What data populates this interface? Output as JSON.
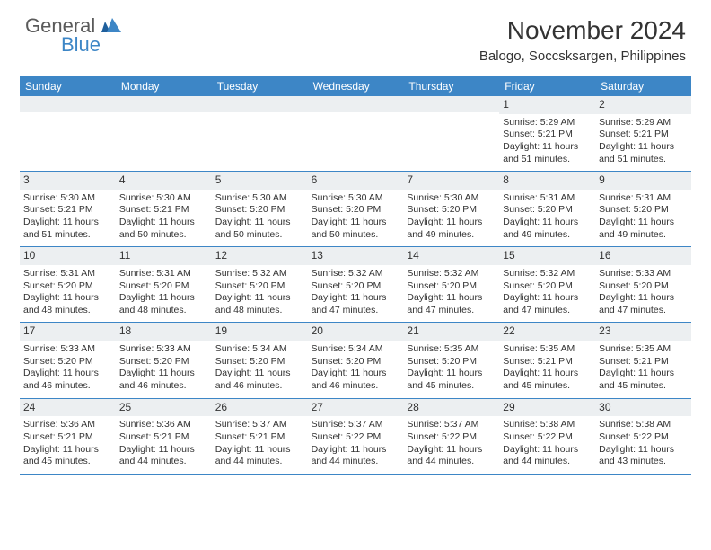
{
  "logo": {
    "general": "General",
    "blue": "Blue"
  },
  "title": "November 2024",
  "location": "Balogo, Soccsksargen, Philippines",
  "colors": {
    "header_bg": "#3d86c6",
    "header_text": "#ffffff",
    "daynum_bg": "#eceff1",
    "text": "#333333",
    "border": "#3d86c6",
    "logo_gray": "#5a5a5a",
    "logo_blue": "#3d86c6"
  },
  "day_names": [
    "Sunday",
    "Monday",
    "Tuesday",
    "Wednesday",
    "Thursday",
    "Friday",
    "Saturday"
  ],
  "weeks": [
    [
      {
        "num": "",
        "lines": []
      },
      {
        "num": "",
        "lines": []
      },
      {
        "num": "",
        "lines": []
      },
      {
        "num": "",
        "lines": []
      },
      {
        "num": "",
        "lines": []
      },
      {
        "num": "1",
        "lines": [
          "Sunrise: 5:29 AM",
          "Sunset: 5:21 PM",
          "Daylight: 11 hours and 51 minutes."
        ]
      },
      {
        "num": "2",
        "lines": [
          "Sunrise: 5:29 AM",
          "Sunset: 5:21 PM",
          "Daylight: 11 hours and 51 minutes."
        ]
      }
    ],
    [
      {
        "num": "3",
        "lines": [
          "Sunrise: 5:30 AM",
          "Sunset: 5:21 PM",
          "Daylight: 11 hours and 51 minutes."
        ]
      },
      {
        "num": "4",
        "lines": [
          "Sunrise: 5:30 AM",
          "Sunset: 5:21 PM",
          "Daylight: 11 hours and 50 minutes."
        ]
      },
      {
        "num": "5",
        "lines": [
          "Sunrise: 5:30 AM",
          "Sunset: 5:20 PM",
          "Daylight: 11 hours and 50 minutes."
        ]
      },
      {
        "num": "6",
        "lines": [
          "Sunrise: 5:30 AM",
          "Sunset: 5:20 PM",
          "Daylight: 11 hours and 50 minutes."
        ]
      },
      {
        "num": "7",
        "lines": [
          "Sunrise: 5:30 AM",
          "Sunset: 5:20 PM",
          "Daylight: 11 hours and 49 minutes."
        ]
      },
      {
        "num": "8",
        "lines": [
          "Sunrise: 5:31 AM",
          "Sunset: 5:20 PM",
          "Daylight: 11 hours and 49 minutes."
        ]
      },
      {
        "num": "9",
        "lines": [
          "Sunrise: 5:31 AM",
          "Sunset: 5:20 PM",
          "Daylight: 11 hours and 49 minutes."
        ]
      }
    ],
    [
      {
        "num": "10",
        "lines": [
          "Sunrise: 5:31 AM",
          "Sunset: 5:20 PM",
          "Daylight: 11 hours and 48 minutes."
        ]
      },
      {
        "num": "11",
        "lines": [
          "Sunrise: 5:31 AM",
          "Sunset: 5:20 PM",
          "Daylight: 11 hours and 48 minutes."
        ]
      },
      {
        "num": "12",
        "lines": [
          "Sunrise: 5:32 AM",
          "Sunset: 5:20 PM",
          "Daylight: 11 hours and 48 minutes."
        ]
      },
      {
        "num": "13",
        "lines": [
          "Sunrise: 5:32 AM",
          "Sunset: 5:20 PM",
          "Daylight: 11 hours and 47 minutes."
        ]
      },
      {
        "num": "14",
        "lines": [
          "Sunrise: 5:32 AM",
          "Sunset: 5:20 PM",
          "Daylight: 11 hours and 47 minutes."
        ]
      },
      {
        "num": "15",
        "lines": [
          "Sunrise: 5:32 AM",
          "Sunset: 5:20 PM",
          "Daylight: 11 hours and 47 minutes."
        ]
      },
      {
        "num": "16",
        "lines": [
          "Sunrise: 5:33 AM",
          "Sunset: 5:20 PM",
          "Daylight: 11 hours and 47 minutes."
        ]
      }
    ],
    [
      {
        "num": "17",
        "lines": [
          "Sunrise: 5:33 AM",
          "Sunset: 5:20 PM",
          "Daylight: 11 hours and 46 minutes."
        ]
      },
      {
        "num": "18",
        "lines": [
          "Sunrise: 5:33 AM",
          "Sunset: 5:20 PM",
          "Daylight: 11 hours and 46 minutes."
        ]
      },
      {
        "num": "19",
        "lines": [
          "Sunrise: 5:34 AM",
          "Sunset: 5:20 PM",
          "Daylight: 11 hours and 46 minutes."
        ]
      },
      {
        "num": "20",
        "lines": [
          "Sunrise: 5:34 AM",
          "Sunset: 5:20 PM",
          "Daylight: 11 hours and 46 minutes."
        ]
      },
      {
        "num": "21",
        "lines": [
          "Sunrise: 5:35 AM",
          "Sunset: 5:20 PM",
          "Daylight: 11 hours and 45 minutes."
        ]
      },
      {
        "num": "22",
        "lines": [
          "Sunrise: 5:35 AM",
          "Sunset: 5:21 PM",
          "Daylight: 11 hours and 45 minutes."
        ]
      },
      {
        "num": "23",
        "lines": [
          "Sunrise: 5:35 AM",
          "Sunset: 5:21 PM",
          "Daylight: 11 hours and 45 minutes."
        ]
      }
    ],
    [
      {
        "num": "24",
        "lines": [
          "Sunrise: 5:36 AM",
          "Sunset: 5:21 PM",
          "Daylight: 11 hours and 45 minutes."
        ]
      },
      {
        "num": "25",
        "lines": [
          "Sunrise: 5:36 AM",
          "Sunset: 5:21 PM",
          "Daylight: 11 hours and 44 minutes."
        ]
      },
      {
        "num": "26",
        "lines": [
          "Sunrise: 5:37 AM",
          "Sunset: 5:21 PM",
          "Daylight: 11 hours and 44 minutes."
        ]
      },
      {
        "num": "27",
        "lines": [
          "Sunrise: 5:37 AM",
          "Sunset: 5:22 PM",
          "Daylight: 11 hours and 44 minutes."
        ]
      },
      {
        "num": "28",
        "lines": [
          "Sunrise: 5:37 AM",
          "Sunset: 5:22 PM",
          "Daylight: 11 hours and 44 minutes."
        ]
      },
      {
        "num": "29",
        "lines": [
          "Sunrise: 5:38 AM",
          "Sunset: 5:22 PM",
          "Daylight: 11 hours and 44 minutes."
        ]
      },
      {
        "num": "30",
        "lines": [
          "Sunrise: 5:38 AM",
          "Sunset: 5:22 PM",
          "Daylight: 11 hours and 43 minutes."
        ]
      }
    ]
  ]
}
